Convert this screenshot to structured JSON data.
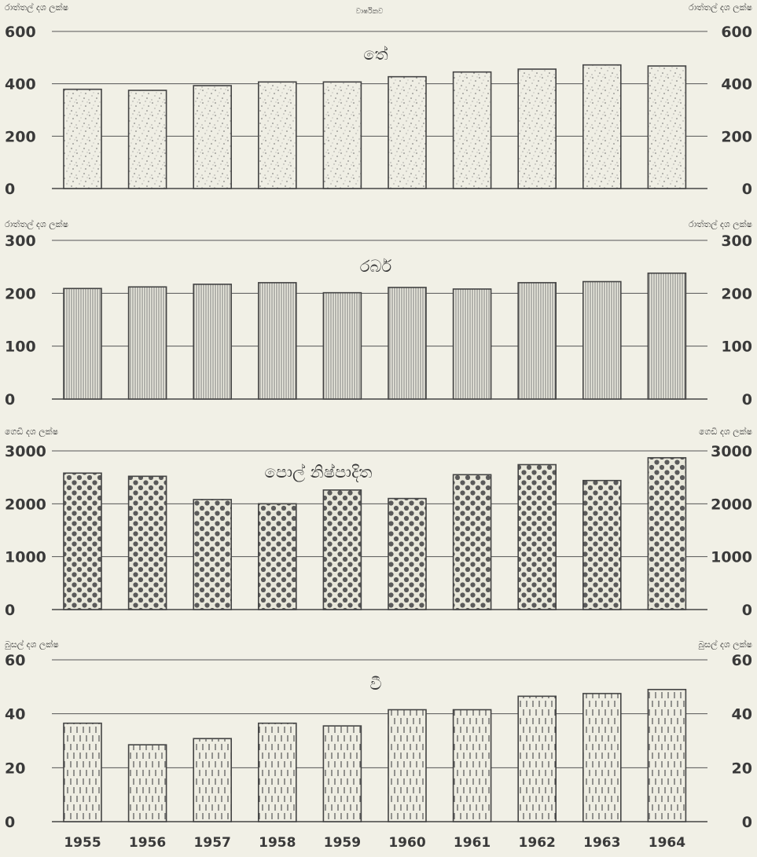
{
  "header_caption": "වාර්ෂිකව",
  "chart_data": [
    {
      "type": "bar",
      "title": "තේ",
      "ylabel_left": "රාත්තල් දශ ලක්ෂ",
      "ylabel_right": "රාත්තල් දශ ලක්ෂ",
      "categories": [
        "1955",
        "1956",
        "1957",
        "1958",
        "1959",
        "1960",
        "1961",
        "1962",
        "1963",
        "1964"
      ],
      "values": [
        379,
        375,
        393,
        407,
        407,
        427,
        445,
        456,
        472,
        468
      ],
      "ylim": [
        0,
        600
      ],
      "yticks": [
        0,
        200,
        400,
        600
      ],
      "pattern": "stipple"
    },
    {
      "type": "bar",
      "title": "රබර්",
      "ylabel_left": "රාත්තල් දශ ලක්ෂ",
      "ylabel_right": "රාත්තල් දශ ලක්ෂ",
      "categories": [
        "1955",
        "1956",
        "1957",
        "1958",
        "1959",
        "1960",
        "1961",
        "1962",
        "1963",
        "1964"
      ],
      "values": [
        209,
        212,
        217,
        220,
        201,
        211,
        208,
        220,
        222,
        238
      ],
      "ylim": [
        0,
        300
      ],
      "yticks": [
        0,
        100,
        200,
        300
      ],
      "pattern": "vertical-lines"
    },
    {
      "type": "bar",
      "title": "පොල් නිෂ්පාදිත",
      "ylabel_left": "ගෙඩි දශ ලක්ෂ",
      "ylabel_right": "ගෙඩි දශ ලක්ෂ",
      "categories": [
        "1955",
        "1956",
        "1957",
        "1958",
        "1959",
        "1960",
        "1961",
        "1962",
        "1963",
        "1964"
      ],
      "values": [
        2580,
        2520,
        2080,
        2000,
        2260,
        2100,
        2550,
        2740,
        2440,
        2870
      ],
      "ylim": [
        0,
        3000
      ],
      "yticks": [
        0,
        1000,
        2000,
        3000
      ],
      "pattern": "dots"
    },
    {
      "type": "bar",
      "title": "වී",
      "ylabel_left": "බුසල් දශ ලක්ෂ",
      "ylabel_right": "බුසල් දශ ලක්ෂ",
      "categories": [
        "1955",
        "1956",
        "1957",
        "1958",
        "1959",
        "1960",
        "1961",
        "1962",
        "1963",
        "1964"
      ],
      "values": [
        36.5,
        28.5,
        30.8,
        36.5,
        35.5,
        41.5,
        41.5,
        46.5,
        47.5,
        49
      ],
      "ylim": [
        0,
        60
      ],
      "yticks": [
        0,
        20,
        40,
        60
      ],
      "pattern": "dashes"
    }
  ],
  "colors": {
    "background": "#f1f0e6",
    "ink": "#3a3a3a",
    "bar_fill": "#e8e7da",
    "dot": "#5a5a5a"
  }
}
